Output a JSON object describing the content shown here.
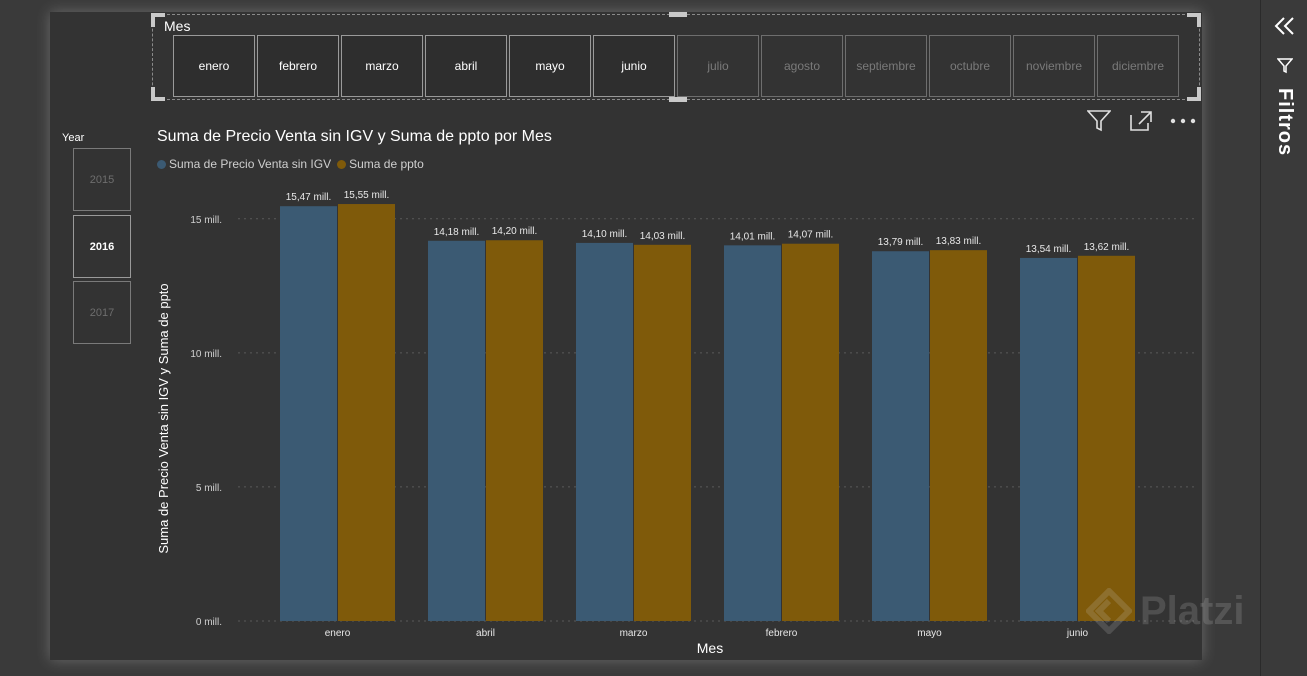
{
  "slicer_mes": {
    "title": "Mes",
    "months": [
      {
        "label": "enero",
        "active": true
      },
      {
        "label": "febrero",
        "active": true
      },
      {
        "label": "marzo",
        "active": true
      },
      {
        "label": "abril",
        "active": true
      },
      {
        "label": "mayo",
        "active": true
      },
      {
        "label": "junio",
        "active": true
      },
      {
        "label": "julio",
        "active": false
      },
      {
        "label": "agosto",
        "active": false
      },
      {
        "label": "septiembre",
        "active": false
      },
      {
        "label": "octubre",
        "active": false
      },
      {
        "label": "noviembre",
        "active": false
      },
      {
        "label": "diciembre",
        "active": false
      }
    ]
  },
  "slicer_year": {
    "title": "Year",
    "years": [
      {
        "label": "2015",
        "selected": false
      },
      {
        "label": "2016",
        "selected": true
      },
      {
        "label": "2017",
        "selected": false
      }
    ]
  },
  "chart_header": {
    "title": "Suma de Precio Venta sin IGV y Suma de ppto por Mes",
    "legend": [
      {
        "name": "Suma de Precio Venta sin IGV",
        "color": "#3b5a73"
      },
      {
        "name": "Suma de ppto",
        "color": "#7f5a0a"
      }
    ]
  },
  "toolbar": {
    "filter_icon": "filter-icon",
    "focus_icon": "focus-mode-icon",
    "more_icon": "more-options-icon"
  },
  "filters_pane": {
    "label": "Filtros",
    "collapse_icon": "double-chevron-left-icon",
    "funnel_icon": "funnel-icon"
  },
  "watermark": {
    "text": "Platzi"
  },
  "chart_data": {
    "type": "bar",
    "title": "Suma de Precio Venta sin IGV y Suma de ppto por Mes",
    "xlabel": "Mes",
    "ylabel": "Suma de Precio Venta sin IGV y Suma de ppto",
    "categories": [
      "enero",
      "abril",
      "marzo",
      "febrero",
      "mayo",
      "junio"
    ],
    "series": [
      {
        "name": "Suma de Precio Venta sin IGV",
        "color": "#3b5a73",
        "values": [
          15.47,
          14.18,
          14.1,
          14.01,
          13.79,
          13.54
        ],
        "labels": [
          "15,47 mill.",
          "14,18 mill.",
          "14,10 mill.",
          "14,01 mill.",
          "13,79 mill.",
          "13,54 mill."
        ]
      },
      {
        "name": "Suma de ppto",
        "color": "#7f5a0a",
        "values": [
          15.55,
          14.2,
          14.03,
          14.07,
          13.83,
          13.62
        ],
        "labels": [
          "15,55 mill.",
          "14,20 mill.",
          "14,03 mill.",
          "14,07 mill.",
          "13,83 mill.",
          "13,62 mill."
        ]
      }
    ],
    "yticks": [
      {
        "value": 0,
        "label": "0 mill."
      },
      {
        "value": 5,
        "label": "5 mill."
      },
      {
        "value": 10,
        "label": "10 mill."
      },
      {
        "value": 15,
        "label": "15 mill."
      }
    ],
    "ylim": [
      0,
      15.85
    ],
    "gridlines": true,
    "legend_position": "top-left"
  }
}
